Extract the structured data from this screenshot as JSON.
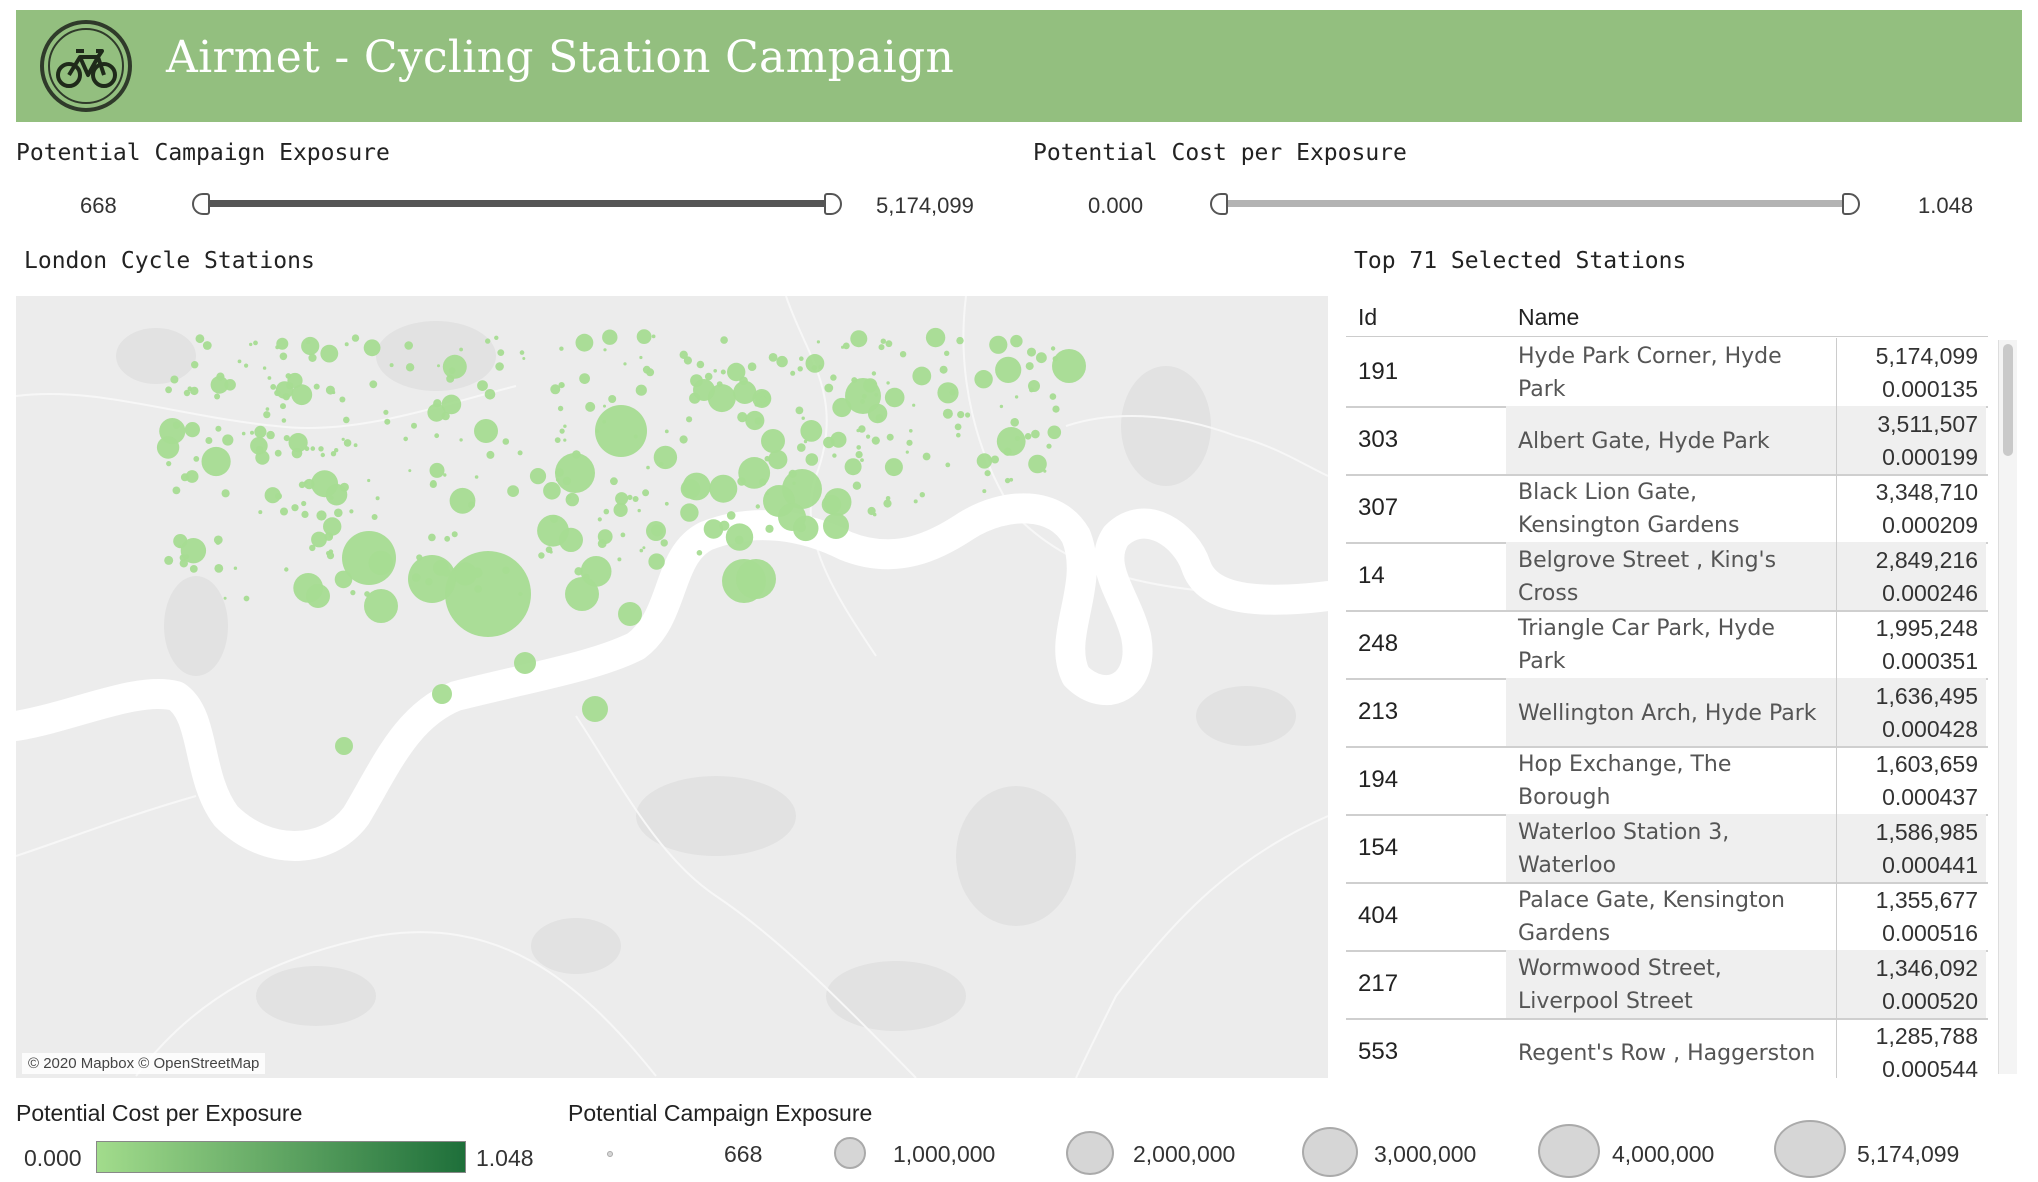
{
  "header": {
    "title": "Airmet - Cycling Station Campaign",
    "logo_icon": "bicycle-icon",
    "color": "#93bf7f"
  },
  "filters": {
    "exposure": {
      "label": "Potential Campaign Exposure",
      "min": "668",
      "max": "5,174,099"
    },
    "cost": {
      "label": "Potential Cost per Exposure",
      "min": "0.000",
      "max": "1.048"
    }
  },
  "map": {
    "title": "London Cycle Stations",
    "attribution": "© 2020 Mapbox © OpenStreetMap",
    "bubble_color": "#a6dc92"
  },
  "table": {
    "title": "Top 71 Selected Stations",
    "headers": {
      "id": "Id",
      "name": "Name"
    },
    "rows": [
      {
        "id": "191",
        "name": "Hyde Park Corner, Hyde Park",
        "exposure": "5,174,099",
        "cost": "0.000135"
      },
      {
        "id": "303",
        "name": "Albert Gate, Hyde Park",
        "exposure": "3,511,507",
        "cost": "0.000199"
      },
      {
        "id": "307",
        "name": "Black Lion Gate, Kensington Gardens",
        "exposure": "3,348,710",
        "cost": "0.000209"
      },
      {
        "id": "14",
        "name": "Belgrove Street , King's Cross",
        "exposure": "2,849,216",
        "cost": "0.000246"
      },
      {
        "id": "248",
        "name": "Triangle Car Park, Hyde Park",
        "exposure": "1,995,248",
        "cost": "0.000351"
      },
      {
        "id": "213",
        "name": "Wellington Arch, Hyde Park",
        "exposure": "1,636,495",
        "cost": "0.000428"
      },
      {
        "id": "194",
        "name": "Hop Exchange, The Borough",
        "exposure": "1,603,659",
        "cost": "0.000437"
      },
      {
        "id": "154",
        "name": "Waterloo Station 3, Waterloo",
        "exposure": "1,586,985",
        "cost": "0.000441"
      },
      {
        "id": "404",
        "name": "Palace Gate, Kensington Gardens",
        "exposure": "1,355,677",
        "cost": "0.000516"
      },
      {
        "id": "217",
        "name": "Wormwood Street, Liverpool Street",
        "exposure": "1,346,092",
        "cost": "0.000520"
      },
      {
        "id": "553",
        "name": "Regent's Row , Haggerston",
        "exposure": "1,285,788",
        "cost": "0.000544"
      }
    ]
  },
  "legend": {
    "cost": {
      "title": "Potential Cost per Exposure",
      "min": "0.000",
      "max": "1.048",
      "color_low": "#a2dc8c",
      "color_high": "#1e6f3a"
    },
    "exposure": {
      "title": "Potential Campaign Exposure",
      "values": [
        "668",
        "1,000,000",
        "2,000,000",
        "3,000,000",
        "4,000,000",
        "5,174,099"
      ]
    }
  }
}
